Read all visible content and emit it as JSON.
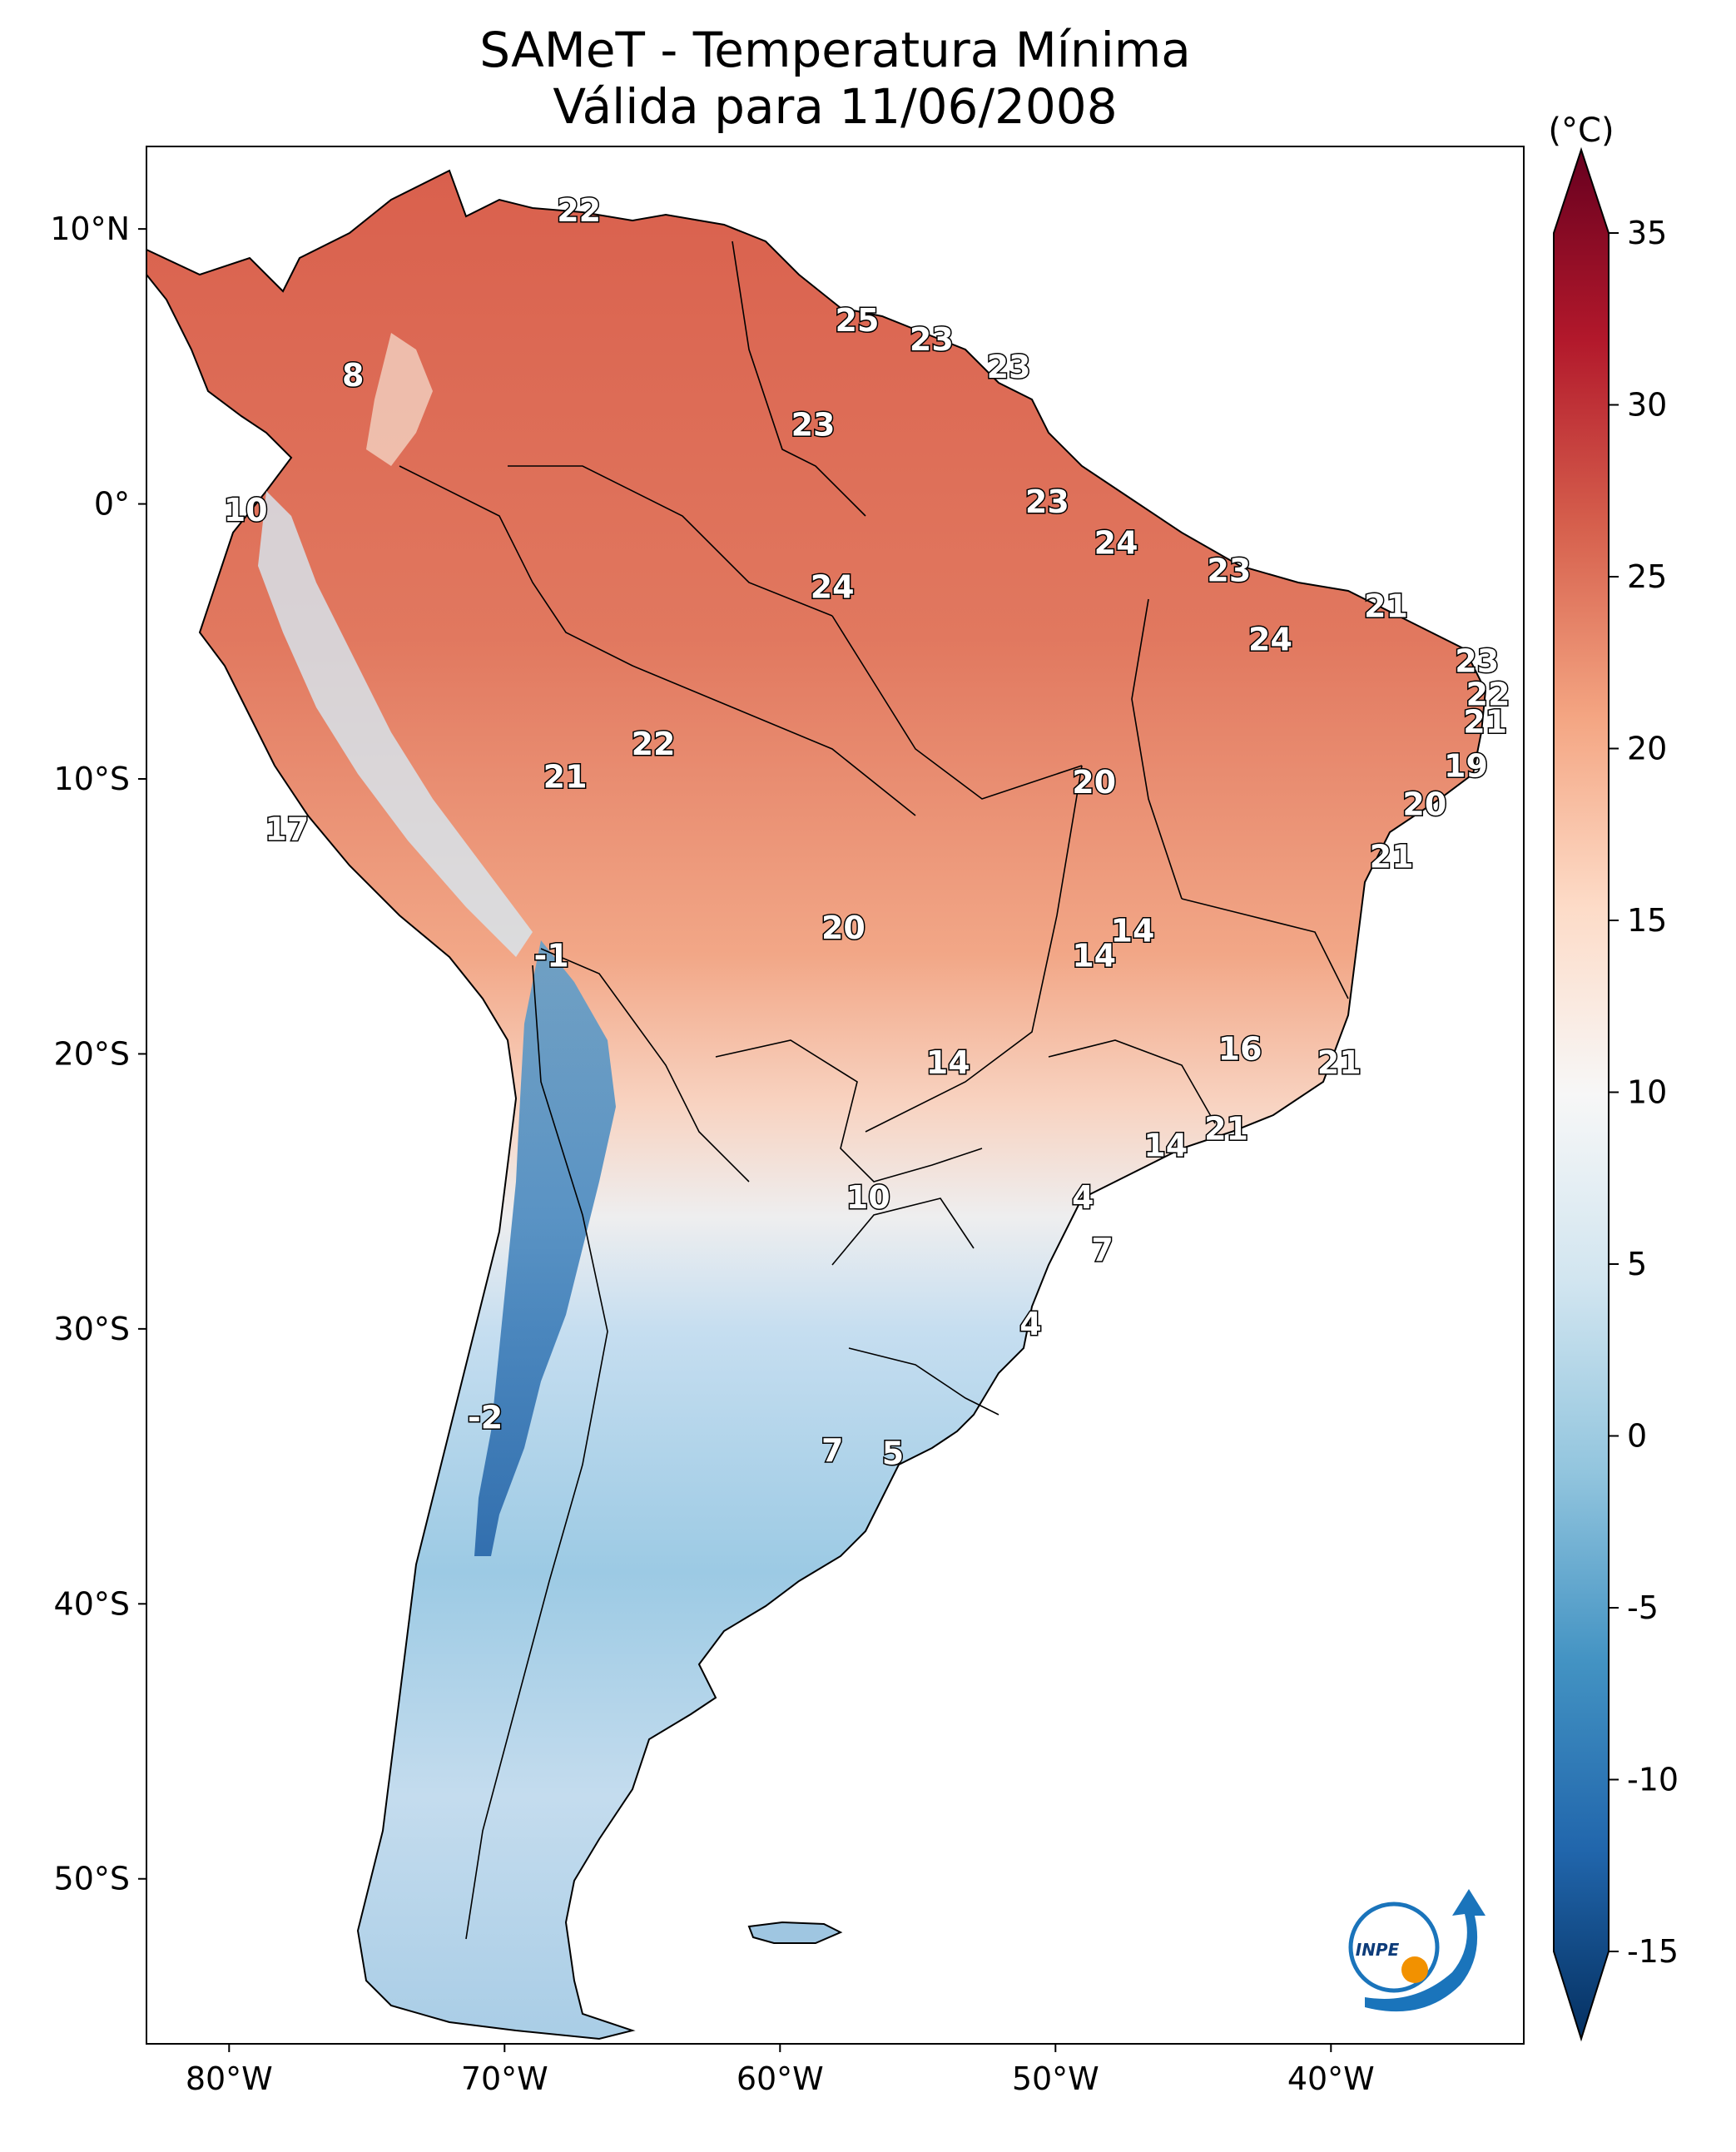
{
  "title": [
    "SAMeT - Temperatura Mínima",
    "Válida para 11/06/2008"
  ],
  "colorbar": {
    "unit": "(°C)",
    "min": -15,
    "max": 35,
    "ticks": [
      35,
      30,
      25,
      20,
      15,
      10,
      5,
      0,
      -5,
      -10,
      -15
    ],
    "colormap": "RdBu_r",
    "extend": "both"
  },
  "map": {
    "lon_ticks": [
      "80°W",
      "70°W",
      "60°W",
      "50°W",
      "40°W"
    ],
    "lat_ticks": [
      "10°N",
      "0°",
      "10°S",
      "20°S",
      "30°S",
      "40°S",
      "50°S"
    ],
    "lon_range": [
      -83,
      -33
    ],
    "lat_range": [
      -56,
      13
    ],
    "labels": [
      {
        "text": "22",
        "lon": -67.3,
        "lat": 10.6
      },
      {
        "text": "8",
        "lon": -75.5,
        "lat": 4.6
      },
      {
        "text": "25",
        "lon": -57.2,
        "lat": 6.6
      },
      {
        "text": "23",
        "lon": -54.5,
        "lat": 5.9
      },
      {
        "text": "23",
        "lon": -51.7,
        "lat": 4.9
      },
      {
        "text": "23",
        "lon": -58.8,
        "lat": 2.8
      },
      {
        "text": "10",
        "lon": -79.4,
        "lat": -0.3
      },
      {
        "text": "23",
        "lon": -50.3,
        "lat": 0.0
      },
      {
        "text": "24",
        "lon": -47.8,
        "lat": -1.5
      },
      {
        "text": "23",
        "lon": -43.7,
        "lat": -2.5
      },
      {
        "text": "24",
        "lon": -58.1,
        "lat": -3.1
      },
      {
        "text": "21",
        "lon": -38.0,
        "lat": -3.8
      },
      {
        "text": "24",
        "lon": -42.2,
        "lat": -5.0
      },
      {
        "text": "23",
        "lon": -34.7,
        "lat": -5.8
      },
      {
        "text": "22",
        "lon": -34.3,
        "lat": -7.0
      },
      {
        "text": "21",
        "lon": -34.4,
        "lat": -8.0
      },
      {
        "text": "22",
        "lon": -64.6,
        "lat": -8.8
      },
      {
        "text": "19",
        "lon": -35.1,
        "lat": -9.6
      },
      {
        "text": "21",
        "lon": -67.8,
        "lat": -10.0
      },
      {
        "text": "20",
        "lon": -48.6,
        "lat": -10.2
      },
      {
        "text": "20",
        "lon": -36.6,
        "lat": -11.0
      },
      {
        "text": "17",
        "lon": -77.9,
        "lat": -11.9
      },
      {
        "text": "21",
        "lon": -37.8,
        "lat": -12.9
      },
      {
        "text": "20",
        "lon": -57.7,
        "lat": -15.5
      },
      {
        "text": "14",
        "lon": -47.2,
        "lat": -15.6
      },
      {
        "text": "-1",
        "lon": -68.3,
        "lat": -16.5
      },
      {
        "text": "14",
        "lon": -48.6,
        "lat": -16.5
      },
      {
        "text": "16",
        "lon": -43.3,
        "lat": -19.9
      },
      {
        "text": "14",
        "lon": -53.9,
        "lat": -20.4
      },
      {
        "text": "21",
        "lon": -39.7,
        "lat": -20.4
      },
      {
        "text": "21",
        "lon": -43.8,
        "lat": -22.8
      },
      {
        "text": "14",
        "lon": -46.0,
        "lat": -23.4
      },
      {
        "text": "10",
        "lon": -56.8,
        "lat": -25.3
      },
      {
        "text": "4",
        "lon": -49.0,
        "lat": -25.3
      },
      {
        "text": "7",
        "lon": -48.3,
        "lat": -27.2
      },
      {
        "text": "4",
        "lon": -50.9,
        "lat": -29.9
      },
      {
        "text": "-2",
        "lon": -70.7,
        "lat": -33.3
      },
      {
        "text": "7",
        "lon": -58.1,
        "lat": -34.5
      },
      {
        "text": "5",
        "lon": -55.9,
        "lat": -34.6
      }
    ]
  },
  "logo": {
    "text": "INPE"
  }
}
